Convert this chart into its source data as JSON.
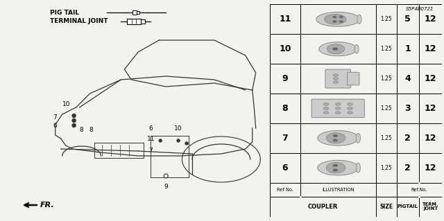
{
  "bg_color": "#f2f2ee",
  "part_code": "S5P4B0721",
  "table": {
    "rows": [
      {
        "ref": "6",
        "size": "1.25",
        "pigtail": "2",
        "term": "12"
      },
      {
        "ref": "7",
        "size": "1.25",
        "pigtail": "2",
        "term": "12"
      },
      {
        "ref": "8",
        "size": "1.25",
        "pigtail": "3",
        "term": "12"
      },
      {
        "ref": "9",
        "size": "1.25",
        "pigtail": "4",
        "term": "12"
      },
      {
        "ref": "10",
        "size": "1.25",
        "pigtail": "1",
        "term": "12"
      },
      {
        "ref": "11",
        "size": "1.25",
        "pigtail": "5",
        "term": "12"
      }
    ]
  }
}
